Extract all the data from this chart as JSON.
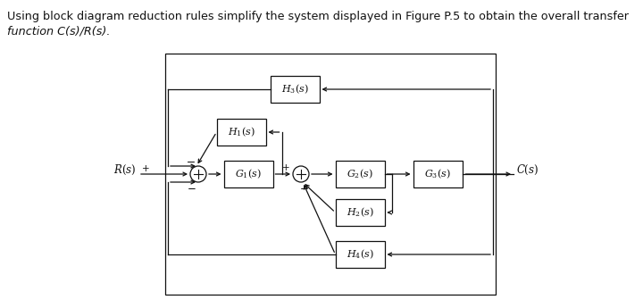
{
  "bg_color": "#ffffff",
  "text_color": "#111111",
  "box_color": "#ffffff",
  "box_edge_color": "#111111",
  "line_color": "#111111",
  "header_line1": "Using block diagram reduction rules simplify the system displayed in Figure P.5 to obtain the overall transfer",
  "header_line2": "function C(s)/R(s).",
  "G1_label": "$G_1(s)$",
  "G2_label": "$G_2(s)$",
  "G3_label": "$G_3(s)$",
  "H1_label": "$H_1(s)$",
  "H2_label": "$H_2(s)$",
  "H3_label": "$H_3(s)$",
  "H4_label": "$H_4(s)$",
  "R_label": "$R(s)$",
  "C_label": "$C(s)$",
  "font_header": 9.2,
  "font_block": 8.0,
  "font_signal": 8.5,
  "font_sign": 7.5
}
